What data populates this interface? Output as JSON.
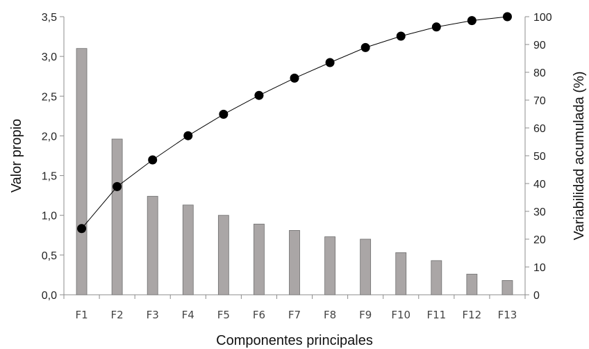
{
  "chart_data": {
    "type": "bar",
    "categories": [
      "F1",
      "F2",
      "F3",
      "F4",
      "F5",
      "F6",
      "F7",
      "F8",
      "F9",
      "F10",
      "F11",
      "F12",
      "F13"
    ],
    "series": [
      {
        "type": "bar",
        "axis": "left",
        "values": [
          3.1,
          1.96,
          1.24,
          1.13,
          1.0,
          0.89,
          0.81,
          0.73,
          0.7,
          0.53,
          0.43,
          0.26,
          0.18
        ]
      },
      {
        "type": "line",
        "axis": "right",
        "values": [
          23.8,
          38.9,
          48.5,
          57.2,
          64.9,
          71.7,
          77.9,
          83.5,
          88.9,
          93.0,
          96.3,
          98.6,
          100.0
        ]
      }
    ],
    "xlabel": "Componentes principales",
    "ylabel": "Valor propio",
    "y2label": "Variabilidad acumulada (%)",
    "ylim": [
      0,
      3.5
    ],
    "y2lim": [
      0,
      100
    ],
    "yticks": [
      "0,0",
      "0,5",
      "1,0",
      "1,5",
      "2,0",
      "2,5",
      "3,0",
      "3,5"
    ],
    "y2ticks": [
      "0",
      "10",
      "20",
      "30",
      "40",
      "50",
      "60",
      "70",
      "80",
      "90",
      "100"
    ],
    "grid": false,
    "colors": {
      "bar": "#aaa6a6",
      "bar_edge": "#6e6e6e",
      "line": "#000000",
      "marker": "#000000"
    }
  }
}
